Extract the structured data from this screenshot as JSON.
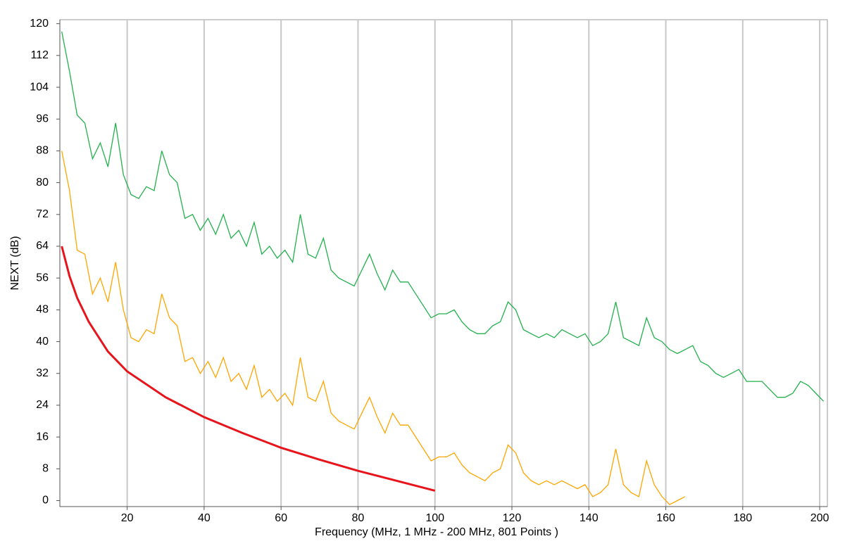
{
  "chart_data": {
    "type": "line",
    "x_label": "Frequency (MHz, 1 MHz - 200 MHz, 801 Points )",
    "y_label": "NEXT (dB)",
    "xlim": [
      2.5,
      202
    ],
    "ylim": [
      -1.5,
      121
    ],
    "xticks": [
      20,
      40,
      60,
      80,
      100,
      120,
      140,
      160,
      180,
      200
    ],
    "yticks": [
      0,
      8,
      16,
      24,
      32,
      40,
      48,
      56,
      64,
      72,
      80,
      88,
      96,
      104,
      112,
      120
    ],
    "grid": "x",
    "series": [
      {
        "color": "#22b14c",
        "x": [
          3,
          5,
          7,
          9,
          11,
          13,
          15,
          17,
          19,
          21,
          23,
          25,
          27,
          29,
          31,
          33,
          35,
          37,
          39,
          41,
          43,
          45,
          47,
          49,
          51,
          53,
          55,
          57,
          59,
          61,
          63,
          65,
          67,
          69,
          71,
          73,
          75,
          77,
          79,
          81,
          83,
          85,
          87,
          89,
          91,
          93,
          95,
          97,
          99,
          101,
          103,
          105,
          107,
          109,
          111,
          113,
          115,
          117,
          119,
          121,
          123,
          125,
          127,
          129,
          131,
          133,
          135,
          137,
          139,
          141,
          143,
          145,
          147,
          149,
          151,
          153,
          155,
          157,
          159,
          161,
          163,
          165,
          167,
          169,
          171,
          173,
          175,
          177,
          179,
          181,
          183,
          185,
          187,
          189,
          191,
          193,
          195,
          197,
          199,
          201
        ],
        "values": [
          118,
          108,
          97,
          95,
          86,
          90,
          84,
          95,
          82,
          77,
          76,
          79,
          78,
          88,
          82,
          80,
          71,
          72,
          68,
          71,
          67,
          72,
          66,
          68,
          64,
          70,
          62,
          64,
          61,
          63,
          60,
          72,
          62,
          61,
          66,
          58,
          56,
          55,
          54,
          58,
          62,
          57,
          53,
          58,
          55,
          55,
          52,
          49,
          46,
          47,
          47,
          48,
          45,
          43,
          42,
          42,
          44,
          45,
          50,
          48,
          43,
          42,
          41,
          42,
          41,
          43,
          42,
          41,
          42,
          39,
          40,
          42,
          50,
          41,
          40,
          39,
          46,
          41,
          40,
          38,
          37,
          38,
          39,
          35,
          34,
          32,
          31,
          32,
          33,
          30,
          30,
          30,
          28,
          26,
          26,
          27,
          30,
          29,
          27,
          25
        ]
      },
      {
        "color": "#ffa500",
        "x": [
          3,
          5,
          7,
          9,
          11,
          13,
          15,
          17,
          19,
          21,
          23,
          25,
          27,
          29,
          31,
          33,
          35,
          37,
          39,
          41,
          43,
          45,
          47,
          49,
          51,
          53,
          55,
          57,
          59,
          61,
          63,
          65,
          67,
          69,
          71,
          73,
          75,
          77,
          79,
          81,
          83,
          85,
          87,
          89,
          91,
          93,
          95,
          97,
          99,
          101,
          103,
          105,
          107,
          109,
          111,
          113,
          115,
          117,
          119,
          121,
          123,
          125,
          127,
          129,
          131,
          133,
          135,
          137,
          139,
          141,
          143,
          145,
          147,
          149,
          151,
          153,
          155,
          157,
          159,
          161,
          163,
          165
        ],
        "values": [
          88,
          78,
          63,
          62,
          52,
          56,
          50,
          60,
          48,
          41,
          40,
          43,
          42,
          52,
          46,
          44,
          35,
          36,
          32,
          35,
          31,
          36,
          30,
          32,
          28,
          34,
          26,
          28,
          25,
          27,
          24,
          36,
          26,
          25,
          30,
          22,
          20,
          19,
          18,
          22,
          26,
          21,
          17,
          22,
          19,
          19,
          16,
          13,
          10,
          11,
          11,
          12,
          9,
          7,
          6,
          5,
          7,
          8,
          14,
          12,
          7,
          5,
          4,
          5,
          4,
          5,
          4,
          3,
          4,
          1,
          2,
          4,
          13,
          4,
          2,
          1,
          10,
          4,
          1,
          -1,
          0,
          1
        ]
      },
      {
        "color": "#e8141c",
        "x": [
          3,
          5,
          7,
          10,
          15,
          20,
          30,
          40,
          50,
          60,
          70,
          80,
          90,
          100
        ],
        "values": [
          64,
          56.5,
          51,
          45,
          37.5,
          32.5,
          26,
          21,
          17,
          13.3,
          10.3,
          7.5,
          5,
          2.5
        ]
      }
    ]
  }
}
